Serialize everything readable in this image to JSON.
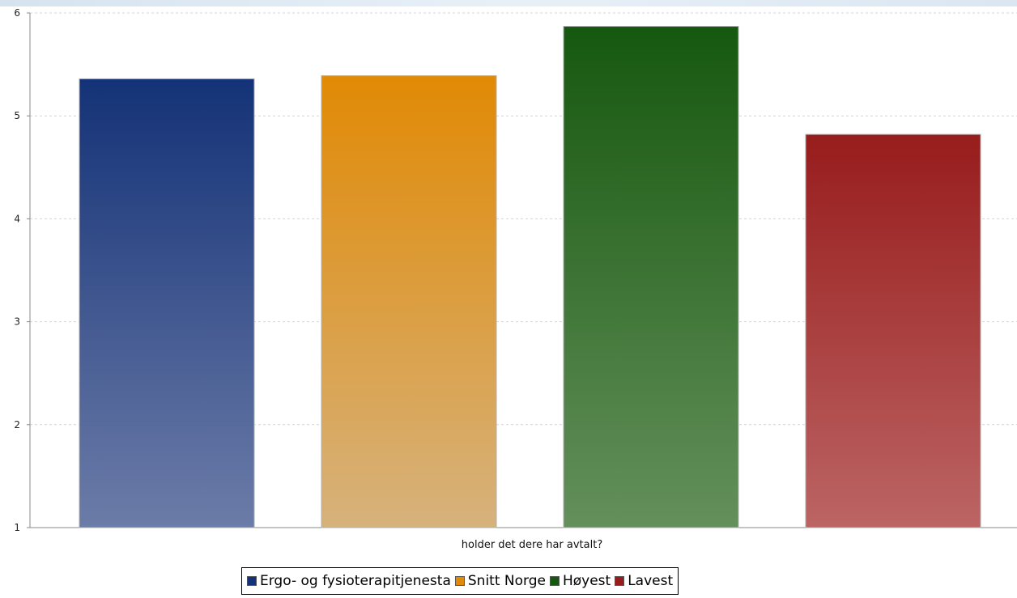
{
  "chart_data": {
    "type": "bar",
    "xlabel": "holder det dere har avtalt?",
    "ylabel": "",
    "ylim": [
      1,
      6
    ],
    "yticks": [
      1,
      2,
      3,
      4,
      5,
      6
    ],
    "grid": true,
    "legend_position": "bottom",
    "series": [
      {
        "name": "Ergo- og fysioterapitjenesta",
        "value": 5.36,
        "color": "#143277",
        "color_light": "#6c7ca8"
      },
      {
        "name": "Snitt Norge",
        "value": 5.39,
        "color": "#e18a05",
        "color_light": "#d6b27c"
      },
      {
        "name": "Høyest",
        "value": 5.87,
        "color": "#16580f",
        "color_light": "#64905b"
      },
      {
        "name": "Lavest",
        "value": 4.82,
        "color": "#981c1c",
        "color_light": "#bc6464"
      }
    ]
  }
}
